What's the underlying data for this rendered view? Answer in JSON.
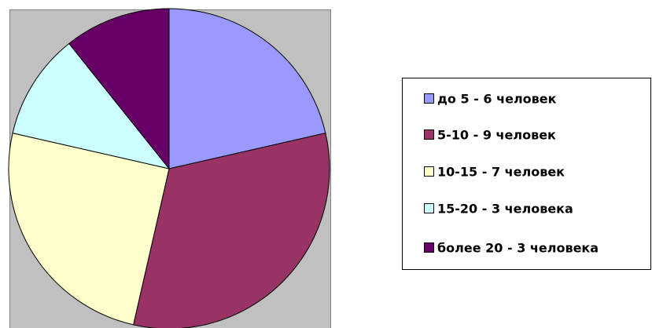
{
  "chart_data": {
    "type": "pie",
    "categories": [
      "до 5 - 6 человек",
      "5-10 - 9 человек",
      "10-15 - 7 человек",
      "15-20 - 3 человека",
      "более 20 - 3 человека"
    ],
    "values": [
      6,
      9,
      7,
      3,
      3
    ],
    "colors": [
      "#9999ff",
      "#993366",
      "#ffffcc",
      "#ccffff",
      "#660066"
    ],
    "legend": "right"
  }
}
